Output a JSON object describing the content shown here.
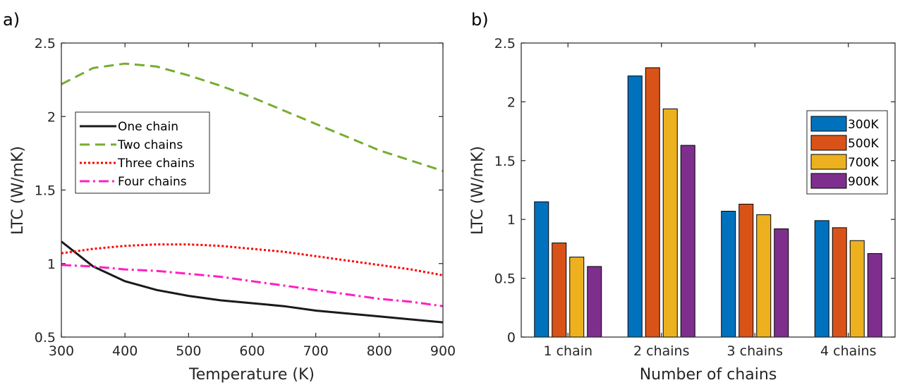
{
  "panels": {
    "a_label": "a)",
    "b_label": "b)"
  },
  "chart_data": [
    {
      "type": "line",
      "title": "",
      "xlabel": "Temperature (K)",
      "ylabel": "LTC (W/mK)",
      "xlim": [
        300,
        900
      ],
      "ylim": [
        0.5,
        2.5
      ],
      "xticks": [
        300,
        400,
        500,
        600,
        700,
        800,
        900
      ],
      "xtick_labels": [
        "300",
        "400",
        "500",
        "600",
        "700",
        "800",
        "900"
      ],
      "yticks": [
        0.5,
        1,
        1.5,
        2,
        2.5
      ],
      "ytick_labels": [
        "0.5",
        "1",
        "1.5",
        "2",
        "2.5"
      ],
      "legend_position": "upper-left",
      "grid": false,
      "x": [
        300,
        350,
        400,
        450,
        500,
        550,
        600,
        650,
        700,
        750,
        800,
        850,
        900
      ],
      "series": [
        {
          "name": "One chain",
          "style": "solid",
          "color": "#1a1a1a",
          "values": [
            1.15,
            0.98,
            0.88,
            0.82,
            0.78,
            0.75,
            0.73,
            0.71,
            0.68,
            0.66,
            0.64,
            0.62,
            0.6
          ]
        },
        {
          "name": "Two chains",
          "style": "dashed",
          "color": "#77ac30",
          "values": [
            2.22,
            2.33,
            2.36,
            2.34,
            2.28,
            2.21,
            2.13,
            2.04,
            1.95,
            1.86,
            1.77,
            1.7,
            1.63
          ]
        },
        {
          "name": "Three chains",
          "style": "dotted",
          "color": "#ff0000",
          "values": [
            1.07,
            1.1,
            1.12,
            1.13,
            1.13,
            1.12,
            1.1,
            1.08,
            1.05,
            1.02,
            0.99,
            0.96,
            0.92
          ]
        },
        {
          "name": "Four chains",
          "style": "dashdot",
          "color": "#ff1fbf",
          "values": [
            0.99,
            0.98,
            0.96,
            0.95,
            0.93,
            0.91,
            0.88,
            0.85,
            0.82,
            0.79,
            0.76,
            0.74,
            0.71
          ]
        }
      ]
    },
    {
      "type": "bar",
      "title": "",
      "xlabel": "Number of chains",
      "ylabel": "LTC (W/mK)",
      "ylim": [
        0,
        2.5
      ],
      "yticks": [
        0,
        0.5,
        1,
        1.5,
        2,
        2.5
      ],
      "ytick_labels": [
        "0",
        "0.5",
        "1",
        "1.5",
        "2",
        "2.5"
      ],
      "legend_position": "right",
      "grid": false,
      "categories": [
        "1 chain",
        "2 chains",
        "3 chains",
        "4 chains"
      ],
      "series": [
        {
          "name": "300K",
          "color": "#0072bd",
          "values": [
            1.15,
            2.22,
            1.07,
            0.99
          ]
        },
        {
          "name": "500K",
          "color": "#d95319",
          "values": [
            0.8,
            2.29,
            1.13,
            0.93
          ]
        },
        {
          "name": "700K",
          "color": "#edb120",
          "values": [
            0.68,
            1.94,
            1.04,
            0.82
          ]
        },
        {
          "name": "900K",
          "color": "#7e2f8e",
          "values": [
            0.6,
            1.63,
            0.92,
            0.71
          ]
        }
      ]
    }
  ]
}
